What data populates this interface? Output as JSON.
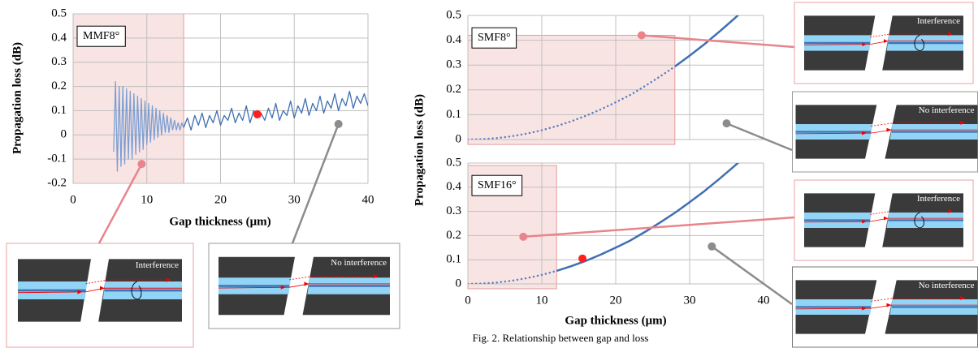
{
  "chart_data": [
    {
      "type": "line",
      "label": "MMF8°",
      "xlabel": "Gap thickness (μm)",
      "ylabel": "Propagation loss (dB)",
      "xlim": [
        0,
        40
      ],
      "ylim": [
        -0.2,
        0.5
      ],
      "xticks": [
        0,
        10,
        20,
        30,
        40
      ],
      "yticks": [
        -0.2,
        -0.1,
        0,
        0.1,
        0.2,
        0.3,
        0.4,
        0.5
      ],
      "grid": true,
      "shade_xlim": [
        0,
        15
      ],
      "shade_ylim": [
        -0.2,
        0.5
      ],
      "shade_color": "#f9e4e4",
      "series": [
        {
          "color": "#7d9fd2",
          "dash": "solid",
          "x": [
            5.5,
            5.75,
            6,
            6.25,
            6.5,
            6.75,
            7,
            7.25,
            7.5,
            7.75,
            8,
            8.25,
            8.5,
            8.75,
            9,
            9.25,
            9.5,
            9.75,
            10,
            10.25,
            10.5,
            10.75,
            11,
            11.25,
            11.5,
            11.75,
            12,
            12.25,
            12.5,
            12.75,
            13,
            13.25,
            13.5,
            13.75,
            14,
            14.25,
            14.5,
            14.75,
            15
          ],
          "values": [
            -0.07,
            0.22,
            -0.15,
            0.2,
            -0.13,
            0.2,
            -0.12,
            0.19,
            -0.1,
            0.18,
            -0.1,
            0.17,
            -0.08,
            0.16,
            -0.07,
            0.15,
            -0.06,
            0.14,
            -0.04,
            0.13,
            -0.03,
            0.12,
            -0.02,
            0.11,
            -0.01,
            0.1,
            0,
            0.09,
            0.01,
            0.08,
            0.01,
            0.07,
            0.02,
            0.06,
            0.02,
            0.05,
            0.02,
            0.05,
            0.03
          ]
        },
        {
          "color": "#3f6fb2",
          "dash": "solid",
          "x": [
            15,
            15.5,
            16,
            16.5,
            17,
            17.5,
            18,
            18.5,
            19,
            19.5,
            20,
            20.5,
            21,
            21.5,
            22,
            22.5,
            23,
            23.5,
            24,
            24.5,
            25,
            25.5,
            26,
            26.5,
            27,
            27.5,
            28,
            28.5,
            29,
            29.5,
            30,
            30.5,
            31,
            31.5,
            32,
            32.5,
            33,
            33.5,
            34,
            34.5,
            35,
            35.5,
            36,
            36.5,
            37,
            37.5,
            38,
            38.5,
            39,
            39.5,
            40
          ],
          "values": [
            0.03,
            0.07,
            0.02,
            0.08,
            0.04,
            0.09,
            0.03,
            0.08,
            0.05,
            0.1,
            0.04,
            0.08,
            0.06,
            0.11,
            0.05,
            0.09,
            0.06,
            0.12,
            0.05,
            0.1,
            0.07,
            0.09,
            0.06,
            0.11,
            0.07,
            0.13,
            0.06,
            0.1,
            0.08,
            0.14,
            0.07,
            0.12,
            0.09,
            0.15,
            0.08,
            0.13,
            0.1,
            0.16,
            0.09,
            0.14,
            0.11,
            0.17,
            0.1,
            0.15,
            0.12,
            0.18,
            0.11,
            0.16,
            0.13,
            0.17,
            0.12
          ]
        }
      ],
      "markers": [
        {
          "x": 9.3,
          "y": -0.12,
          "color": "#e8848c"
        },
        {
          "x": 25,
          "y": 0.085,
          "color": "#ff1f1f"
        },
        {
          "x": 36,
          "y": 0.045,
          "color": "#8c8c8c"
        }
      ]
    },
    {
      "type": "line",
      "label": "SMF8°",
      "ylabel": "Propagation loss (dB)",
      "show_xtick_labels": false,
      "xlim": [
        0,
        40
      ],
      "ylim": [
        0,
        0.5
      ],
      "xticks": [
        0,
        10,
        20,
        30,
        40
      ],
      "yticks": [
        0,
        0.1,
        0.2,
        0.3,
        0.4,
        0.5
      ],
      "grid": true,
      "shade_xlim": [
        0,
        28
      ],
      "shade_ylim": [
        -0.02,
        0.42
      ],
      "shade_color": "#f9e4e4",
      "series": [
        {
          "color": "#5a82c0",
          "dash": "dotted",
          "x": [
            0,
            2,
            4,
            6,
            8,
            10,
            12,
            14,
            16,
            18,
            20,
            22,
            24,
            26,
            28
          ],
          "values": [
            0,
            0.0015,
            0.006,
            0.0135,
            0.024,
            0.0375,
            0.054,
            0.0736,
            0.096,
            0.1216,
            0.15,
            0.18,
            0.216,
            0.254,
            0.294
          ]
        },
        {
          "color": "#3f6fb2",
          "dash": "solid",
          "x": [
            28,
            30,
            32,
            34,
            36,
            38
          ],
          "values": [
            0.294,
            0.338,
            0.384,
            0.434,
            0.486,
            0.54
          ]
        }
      ],
      "markers": [
        {
          "x": 23.5,
          "y": 0.42,
          "color": "#e8848c"
        },
        {
          "x": 35,
          "y": 0.065,
          "color": "#8c8c8c"
        }
      ]
    },
    {
      "type": "line",
      "label": "SMF16°",
      "xlabel": "Gap thickness (μm)",
      "xlim": [
        0,
        40
      ],
      "ylim": [
        0,
        0.5
      ],
      "xticks": [
        0,
        10,
        20,
        30,
        40
      ],
      "yticks": [
        0,
        0.1,
        0.2,
        0.3,
        0.4,
        0.5
      ],
      "grid": true,
      "shade_xlim": [
        0,
        12
      ],
      "shade_ylim": [
        -0.02,
        0.49
      ],
      "shade_color": "#f9e4e4",
      "series": [
        {
          "color": "#5a82c0",
          "dash": "dotted",
          "x": [
            0,
            2,
            4,
            6,
            8,
            10,
            12
          ],
          "values": [
            0,
            0.0015,
            0.006,
            0.0135,
            0.024,
            0.0375,
            0.054
          ]
        },
        {
          "color": "#3f6fb2",
          "dash": "solid",
          "x": [
            12,
            14,
            16,
            18,
            20,
            22,
            24,
            26,
            28,
            30,
            32,
            34,
            36,
            38
          ],
          "values": [
            0.054,
            0.0736,
            0.096,
            0.1216,
            0.15,
            0.18,
            0.216,
            0.254,
            0.294,
            0.338,
            0.384,
            0.434,
            0.486,
            0.54
          ]
        }
      ],
      "markers": [
        {
          "x": 7.5,
          "y": 0.195,
          "color": "#e8848c"
        },
        {
          "x": 15.5,
          "y": 0.105,
          "color": "#ff1f1f"
        },
        {
          "x": 33,
          "y": 0.155,
          "color": "#8c8c8c"
        }
      ]
    }
  ],
  "insets": [
    {
      "label": "Interference"
    },
    {
      "label": "No interference"
    },
    {
      "label": "Interference"
    },
    {
      "label": "No interference"
    },
    {
      "label": "Interference"
    },
    {
      "label": "No interference"
    }
  ],
  "caption": "Fig. 2. Relationship between gap and loss"
}
